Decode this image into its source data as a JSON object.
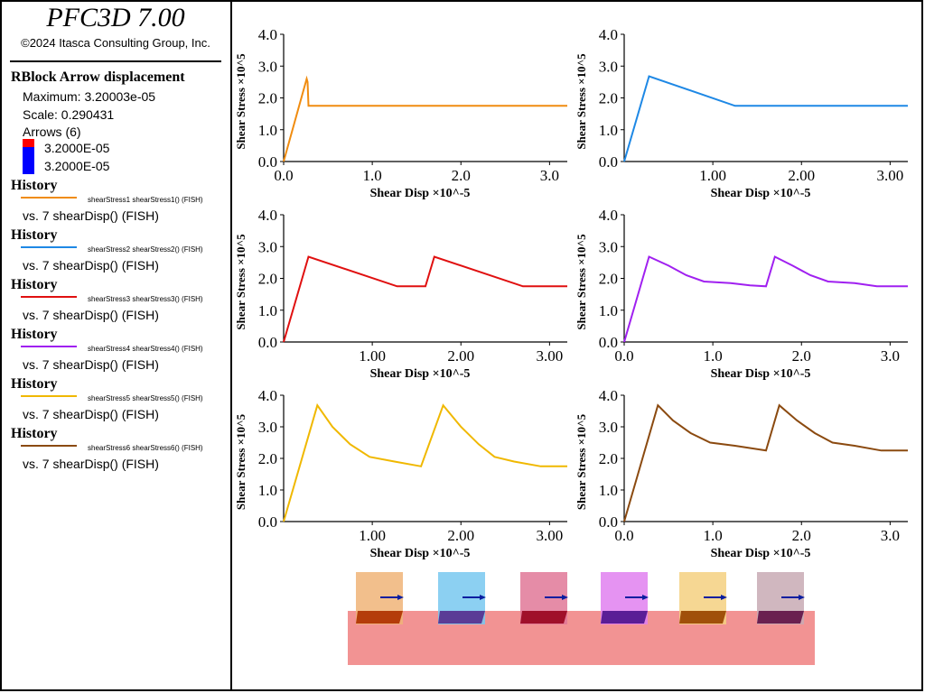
{
  "app_title": "PFC3D 7.00",
  "copyright": "©2024 Itasca Consulting Group, Inc.",
  "arrow_legend": {
    "header": "RBlock Arrow displacement",
    "maximum": "Maximum: 3.20003e-05",
    "scale": "Scale: 0.290431",
    "count": "Arrows (6)",
    "upper_value": "3.2000E-05",
    "lower_value": "3.2000E-05",
    "upper_color": "#ff0000",
    "lower_color": "#0000ff"
  },
  "histories": [
    {
      "header": "History",
      "name": "shearStress1 shearStress1() (FISH)",
      "vs": "vs. 7 shearDisp() (FISH)",
      "color": "#f08c10"
    },
    {
      "header": "History",
      "name": "shearStress2 shearStress2() (FISH)",
      "vs": "vs. 7 shearDisp() (FISH)",
      "color": "#1e88e5"
    },
    {
      "header": "History",
      "name": "shearStress3 shearStress3() (FISH)",
      "vs": "vs. 7 shearDisp() (FISH)",
      "color": "#e01010"
    },
    {
      "header": "History",
      "name": "shearStress4 shearStress4() (FISH)",
      "vs": "vs. 7 shearDisp() (FISH)",
      "color": "#a020f0"
    },
    {
      "header": "History",
      "name": "shearStress5 shearStress5() (FISH)",
      "vs": "vs. 7 shearDisp() (FISH)",
      "color": "#f0b800"
    },
    {
      "header": "History",
      "name": "shearStress6 shearStress6() (FISH)",
      "vs": "vs. 7 shearDisp() (FISH)",
      "color": "#8b4a10"
    }
  ],
  "chart_data": [
    {
      "type": "line",
      "xlabel": "Shear Disp ×10^-5",
      "ylabel": "Shear Stress ×10^5",
      "xlim": [
        0,
        3.2
      ],
      "ylim": [
        0,
        4
      ],
      "xticks": [
        "0.0",
        "1.0",
        "2.0",
        "3.0"
      ],
      "xtick_values": [
        0,
        1,
        2,
        3
      ],
      "yticks": [
        "0.0",
        "1.0",
        "2.0",
        "3.0",
        "4.0"
      ],
      "ytick_values": [
        0,
        1,
        2,
        3,
        4
      ],
      "color": "#f08c10",
      "x": [
        0,
        0.26,
        0.27,
        0.28,
        3.2
      ],
      "y": [
        0,
        2.6,
        2.5,
        1.75,
        1.75
      ]
    },
    {
      "type": "line",
      "xlabel": "Shear Disp ×10^-5",
      "ylabel": "Shear Stress ×10^5",
      "xlim": [
        0,
        3.2
      ],
      "ylim": [
        0,
        4
      ],
      "xticks": [
        "1.00",
        "2.00",
        "3.00"
      ],
      "xtick_values": [
        1,
        2,
        3
      ],
      "yticks": [
        "0.0",
        "1.0",
        "2.0",
        "3.0",
        "4.0"
      ],
      "ytick_values": [
        0,
        1,
        2,
        3,
        4
      ],
      "color": "#1e88e5",
      "x": [
        0,
        0.28,
        1.25,
        3.2
      ],
      "y": [
        0,
        2.68,
        1.75,
        1.75
      ]
    },
    {
      "type": "line",
      "xlabel": "Shear Disp ×10^-5",
      "ylabel": "Shear Stress ×10^5",
      "xlim": [
        0,
        3.2
      ],
      "ylim": [
        0,
        4
      ],
      "xticks": [
        "1.00",
        "2.00",
        "3.00"
      ],
      "xtick_values": [
        1,
        2,
        3
      ],
      "yticks": [
        "0.0",
        "1.0",
        "2.0",
        "3.0",
        "4.0"
      ],
      "ytick_values": [
        0,
        1,
        2,
        3,
        4
      ],
      "color": "#e01010",
      "x": [
        0,
        0.28,
        1.28,
        1.6,
        1.7,
        2.7,
        3.2
      ],
      "y": [
        0,
        2.68,
        1.75,
        1.75,
        2.68,
        1.75,
        1.75
      ]
    },
    {
      "type": "line",
      "xlabel": "Shear Disp ×10^-5",
      "ylabel": "Shear Stress ×10^5",
      "xlim": [
        0,
        3.2
      ],
      "ylim": [
        0,
        4
      ],
      "xticks": [
        "0.0",
        "1.0",
        "2.0",
        "3.0"
      ],
      "xtick_values": [
        0,
        1,
        2,
        3
      ],
      "yticks": [
        "0.0",
        "1.0",
        "2.0",
        "3.0",
        "4.0"
      ],
      "ytick_values": [
        0,
        1,
        2,
        3,
        4
      ],
      "color": "#a020f0",
      "x": [
        0,
        0.28,
        0.5,
        0.7,
        0.9,
        1.2,
        1.42,
        1.6,
        1.7,
        1.9,
        2.1,
        2.3,
        2.6,
        2.85,
        3.2
      ],
      "y": [
        0,
        2.68,
        2.4,
        2.1,
        1.9,
        1.85,
        1.78,
        1.75,
        2.68,
        2.4,
        2.1,
        1.9,
        1.85,
        1.75,
        1.75
      ]
    },
    {
      "type": "line",
      "xlabel": "Shear Disp ×10^-5",
      "ylabel": "Shear Stress ×10^5",
      "xlim": [
        0,
        3.2
      ],
      "ylim": [
        0,
        4
      ],
      "xticks": [
        "1.00",
        "2.00",
        "3.00"
      ],
      "xtick_values": [
        1,
        2,
        3
      ],
      "yticks": [
        "0.0",
        "1.0",
        "2.0",
        "3.0",
        "4.0"
      ],
      "ytick_values": [
        0,
        1,
        2,
        3,
        4
      ],
      "color": "#f0b800",
      "x": [
        0,
        0.38,
        0.55,
        0.75,
        0.97,
        1.25,
        1.55,
        1.8,
        2.0,
        2.2,
        2.38,
        2.6,
        2.9,
        3.2
      ],
      "y": [
        0,
        3.68,
        3.0,
        2.45,
        2.05,
        1.9,
        1.75,
        3.68,
        3.0,
        2.45,
        2.05,
        1.9,
        1.75,
        1.75
      ]
    },
    {
      "type": "line",
      "xlabel": "Shear Disp ×10^-5",
      "ylabel": "Shear Stress ×10^5",
      "xlim": [
        0,
        3.2
      ],
      "ylim": [
        0,
        4
      ],
      "xticks": [
        "0.0",
        "1.0",
        "2.0",
        "3.0"
      ],
      "xtick_values": [
        0,
        1,
        2,
        3
      ],
      "yticks": [
        "0.0",
        "1.0",
        "2.0",
        "3.0",
        "4.0"
      ],
      "ytick_values": [
        0,
        1,
        2,
        3,
        4
      ],
      "color": "#8b4a10",
      "x": [
        0,
        0.38,
        0.55,
        0.75,
        0.97,
        1.25,
        1.6,
        1.75,
        1.95,
        2.15,
        2.35,
        2.6,
        2.9,
        3.2
      ],
      "y": [
        0,
        3.68,
        3.2,
        2.8,
        2.5,
        2.4,
        2.25,
        3.68,
        3.2,
        2.8,
        2.5,
        2.4,
        2.25,
        2.25
      ]
    }
  ],
  "model_view": {
    "base_color": "#f08080",
    "blocks": [
      {
        "color": "#f0b478",
        "bottom_color": "#b43c0a"
      },
      {
        "color": "#78c8f0",
        "bottom_color": "#5a3c96"
      },
      {
        "color": "#e07898",
        "bottom_color": "#a0102a"
      },
      {
        "color": "#e080f0",
        "bottom_color": "#5a1e96"
      },
      {
        "color": "#f5d080",
        "bottom_color": "#a0500a"
      },
      {
        "color": "#c8aab4",
        "bottom_color": "#6a2050"
      }
    ],
    "arrow_color": "#0a1ea0"
  }
}
